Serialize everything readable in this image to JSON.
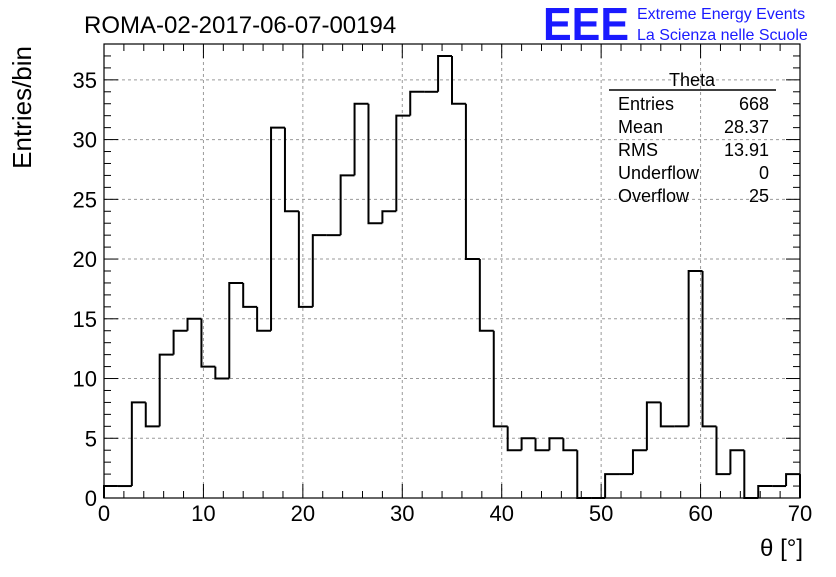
{
  "chart_data": {
    "type": "bar",
    "title": "ROMA-02-2017-06-07-00194",
    "xlabel": "θ [°]",
    "ylabel": "Entries/bin",
    "xlim": [
      0,
      70
    ],
    "ylim": [
      0,
      38
    ],
    "xticks": [
      0,
      10,
      20,
      30,
      40,
      50,
      60,
      70
    ],
    "yticks": [
      0,
      5,
      10,
      15,
      20,
      25,
      30,
      35
    ],
    "grid": true,
    "histogram": true,
    "bin_width": 1.4,
    "values": [
      1,
      1,
      8,
      6,
      12,
      14,
      15,
      11,
      10,
      18,
      16,
      14,
      31,
      24,
      16,
      22,
      22,
      27,
      33,
      23,
      24,
      32,
      34,
      34,
      37,
      33,
      20,
      14,
      6,
      4,
      5,
      4,
      5,
      4,
      0,
      0,
      2,
      2,
      4,
      8,
      6,
      6,
      19,
      6,
      2,
      4,
      0,
      1,
      1,
      2
    ],
    "line_color": "#000000",
    "stats_box": {
      "name": "Theta",
      "rows": [
        {
          "label": "Entries",
          "value": "668"
        },
        {
          "label": "Mean",
          "value": "28.37"
        },
        {
          "label": "RMS",
          "value": "13.91"
        },
        {
          "label": "Underflow",
          "value": "0"
        },
        {
          "label": "Overflow",
          "value": "25"
        }
      ]
    }
  },
  "logo": {
    "text": "EEE",
    "line1": "Extreme Energy Events",
    "line2": "La Scienza nelle Scuole",
    "color": "#1a1aff"
  }
}
